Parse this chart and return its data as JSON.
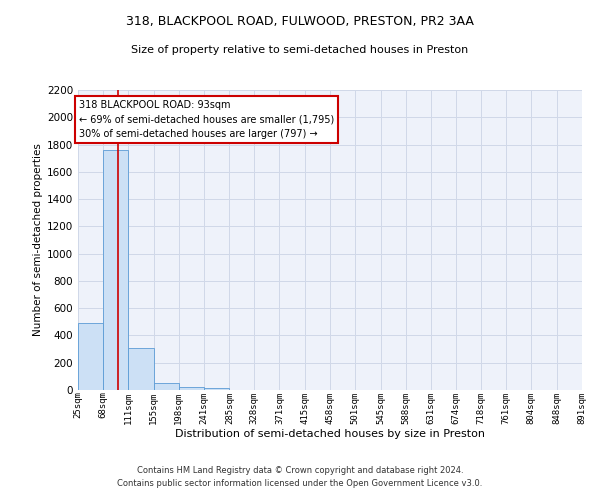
{
  "title": "318, BLACKPOOL ROAD, FULWOOD, PRESTON, PR2 3AA",
  "subtitle": "Size of property relative to semi-detached houses in Preston",
  "xlabel": "Distribution of semi-detached houses by size in Preston",
  "ylabel": "Number of semi-detached properties",
  "footer_line1": "Contains HM Land Registry data © Crown copyright and database right 2024.",
  "footer_line2": "Contains public sector information licensed under the Open Government Licence v3.0.",
  "property_label": "318 BLACKPOOL ROAD: 93sqm",
  "annotation_line1": "← 69% of semi-detached houses are smaller (1,795)",
  "annotation_line2": "30% of semi-detached houses are larger (797) →",
  "property_size": 93,
  "bin_edges": [
    25,
    68,
    111,
    155,
    198,
    241,
    285,
    328,
    371,
    415,
    458,
    501,
    545,
    588,
    631,
    674,
    718,
    761,
    804,
    848,
    891
  ],
  "bin_counts": [
    490,
    1760,
    305,
    55,
    25,
    15,
    0,
    0,
    0,
    0,
    0,
    0,
    0,
    0,
    0,
    0,
    0,
    0,
    0,
    0
  ],
  "bar_color": "#cce0f5",
  "bar_edge_color": "#5b9bd5",
  "red_line_color": "#cc0000",
  "annotation_box_color": "#cc0000",
  "grid_color": "#d0d8e8",
  "background_color": "#eef2fa",
  "tick_labels": [
    "25sqm",
    "68sqm",
    "111sqm",
    "155sqm",
    "198sqm",
    "241sqm",
    "285sqm",
    "328sqm",
    "371sqm",
    "415sqm",
    "458sqm",
    "501sqm",
    "545sqm",
    "588sqm",
    "631sqm",
    "674sqm",
    "718sqm",
    "761sqm",
    "804sqm",
    "848sqm",
    "891sqm"
  ],
  "ylim": [
    0,
    2200
  ],
  "yticks": [
    0,
    200,
    400,
    600,
    800,
    1000,
    1200,
    1400,
    1600,
    1800,
    2000,
    2200
  ],
  "title_fontsize": 9,
  "subtitle_fontsize": 8
}
